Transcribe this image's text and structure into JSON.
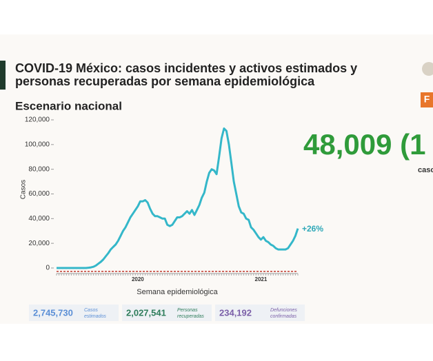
{
  "slide": {
    "title_lines": [
      "COVID-19 México: casos incidentes y activos estimados y",
      "personas recuperadas por semana epidemiológica"
    ],
    "subtitle": "Escenario nacional",
    "big_number": "48,009 (1",
    "big_caption": "caso",
    "badge": "F",
    "stats": [
      {
        "value": "2,745,730",
        "label_lines": [
          "Casos",
          "estimados"
        ],
        "color": "#5b8fd6"
      },
      {
        "value": "2,027,541",
        "label_lines": [
          "Personas",
          "recuperadas"
        ],
        "color": "#2e7d5b"
      },
      {
        "value": "234,192",
        "label_lines": [
          "Defunciones",
          "confirmadas"
        ],
        "color": "#7b5fa8"
      }
    ]
  },
  "chart_data": {
    "type": "line",
    "y_label": "Casos",
    "x_label": "Semana epidemiológica",
    "annotation": "+26%",
    "categories": [
      null,
      null,
      null,
      null,
      null,
      null,
      null,
      null,
      null,
      null,
      null,
      null,
      null,
      null,
      null,
      null,
      null,
      null,
      null,
      null,
      null,
      null,
      null,
      null,
      null,
      null,
      null,
      null,
      null,
      null,
      null,
      null,
      null,
      "2020",
      null,
      null,
      null,
      null,
      null,
      null,
      null,
      null,
      null,
      null,
      null,
      null,
      null,
      null,
      null,
      null,
      null,
      null,
      null,
      null,
      null,
      null,
      null,
      null,
      null,
      null,
      null,
      null,
      null,
      null,
      null,
      null,
      null,
      null,
      null,
      null,
      null,
      null,
      null,
      null,
      null,
      null,
      null,
      null,
      null,
      null,
      null,
      null,
      null,
      "2021",
      null,
      null,
      null,
      null,
      null,
      null,
      null,
      null,
      null,
      null,
      null,
      null,
      null,
      null,
      null
    ],
    "series": [
      {
        "name": "Casos",
        "color": "#34b7c9",
        "values": [
          0,
          0,
          0,
          0,
          0,
          0,
          0,
          0,
          0,
          0,
          0,
          0,
          0,
          200,
          500,
          1000,
          2000,
          3500,
          5000,
          7000,
          9500,
          12000,
          15000,
          17000,
          19000,
          22000,
          26000,
          30000,
          33000,
          37000,
          41000,
          44000,
          47000,
          50000,
          54000,
          54000,
          55000,
          53000,
          48000,
          44000,
          42000,
          42000,
          41000,
          40000,
          40000,
          35000,
          34000,
          35000,
          38000,
          41000,
          41000,
          42000,
          44000,
          46000,
          44000,
          47000,
          43000,
          47000,
          51000,
          57000,
          61000,
          70000,
          77000,
          80000,
          79000,
          76000,
          90000,
          105000,
          113000,
          111000,
          100000,
          85000,
          70000,
          60000,
          50000,
          45000,
          44000,
          40000,
          39000,
          33000,
          31000,
          28000,
          25000,
          23000,
          25000,
          22000,
          21000,
          19000,
          18000,
          16000,
          15000,
          15000,
          15000,
          15000,
          16000,
          19000,
          22000,
          26000,
          32000
        ]
      }
    ],
    "ylim": [
      0,
      120000
    ],
    "yticks": [
      0,
      {
        "value": 20000,
        "label": "20,000"
      },
      {
        "value": 40000,
        "label": "40,000"
      },
      {
        "value": 60000,
        "label": "60,000"
      },
      {
        "value": 80000,
        "label": "80,000"
      },
      {
        "value": 100000,
        "label": "100,000"
      },
      {
        "value": 120000,
        "label": "120,000"
      }
    ]
  }
}
